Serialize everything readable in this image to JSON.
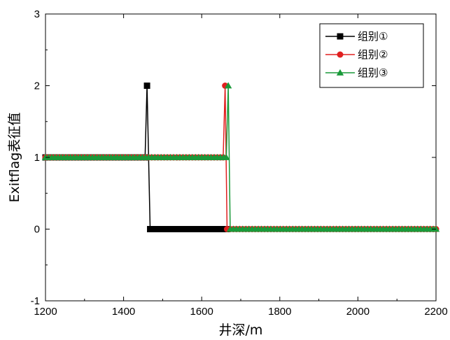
{
  "chart_data": {
    "type": "line",
    "xlabel": "井深/m",
    "ylabel": "Exitflag表征值",
    "xlim": [
      1200,
      2200
    ],
    "ylim": [
      -1,
      3
    ],
    "x_ticks": [
      1200,
      1400,
      1600,
      1800,
      2000,
      2200
    ],
    "y_ticks": [
      -1,
      0,
      1,
      2,
      3
    ],
    "legend_position": "top-right",
    "grid": false,
    "series": [
      {
        "name": "组别①",
        "color": "#000000",
        "marker": "square",
        "segments": [
          {
            "x_start": 1200,
            "x_end": 1455,
            "y": 1
          },
          {
            "x_start": 1468,
            "x_end": 1665,
            "y": 0
          }
        ],
        "points": [
          [
            1455,
            1
          ],
          [
            1460,
            2
          ],
          [
            1468,
            0
          ]
        ]
      },
      {
        "name": "组别②",
        "color": "#e02020",
        "marker": "circle",
        "segments": [
          {
            "x_start": 1200,
            "x_end": 1655,
            "y": 1
          },
          {
            "x_start": 1665,
            "x_end": 2200,
            "y": 0
          }
        ],
        "points": [
          [
            1655,
            1
          ],
          [
            1660,
            2
          ],
          [
            1665,
            0
          ]
        ]
      },
      {
        "name": "组别③",
        "color": "#1a9a3a",
        "marker": "triangle",
        "segments": [
          {
            "x_start": 1200,
            "x_end": 1663,
            "y": 1
          },
          {
            "x_start": 1673,
            "x_end": 2200,
            "y": 0
          }
        ],
        "points": [
          [
            1663,
            1
          ],
          [
            1668,
            2
          ],
          [
            1673,
            0
          ]
        ]
      }
    ]
  }
}
